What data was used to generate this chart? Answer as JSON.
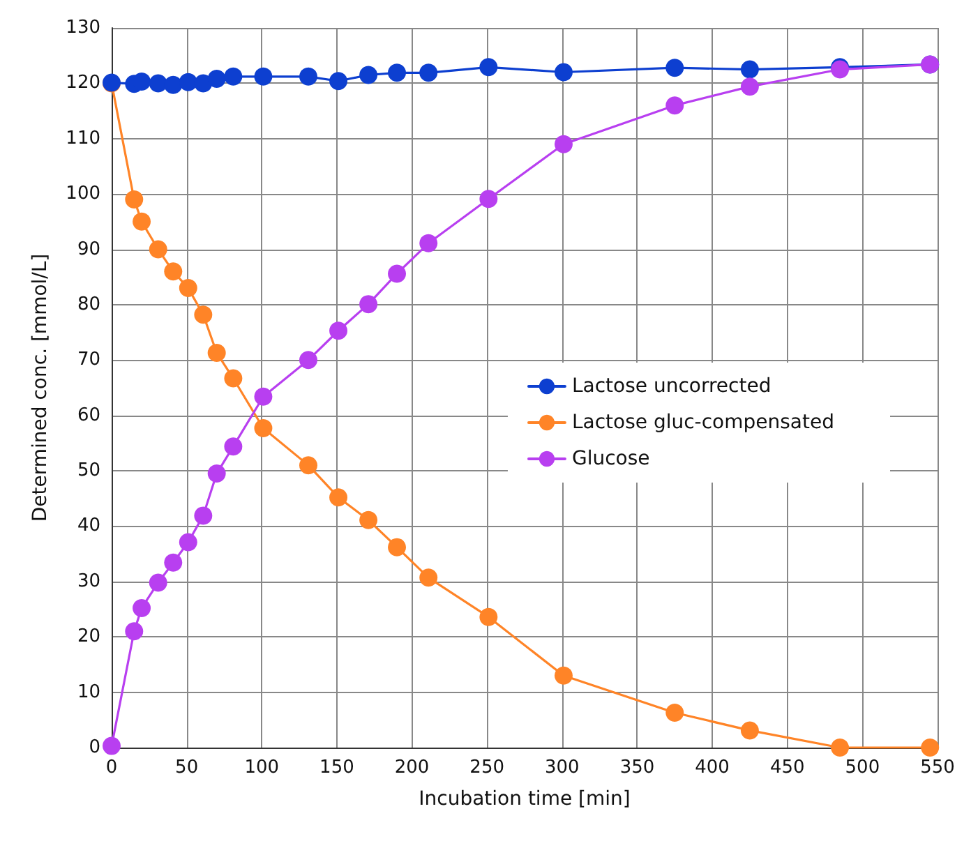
{
  "chart_data": {
    "type": "line",
    "xlabel": "Incubation time [min]",
    "ylabel": "Determined conc. [mmol/L]",
    "x": [
      0,
      15,
      20,
      31,
      41,
      51,
      61,
      70,
      81,
      101,
      131,
      151,
      171,
      190,
      211,
      251,
      301,
      375,
      425,
      485,
      545
    ],
    "series": [
      {
        "name": "Lactose uncorrected",
        "color": "#0d3fd0",
        "values": [
          120.1,
          119.9,
          120.3,
          120,
          119.7,
          120.2,
          120,
          120.8,
          121.2,
          121.2,
          121.2,
          120.4,
          121.5,
          121.9,
          121.9,
          122.9,
          122,
          122.8,
          122.5,
          122.9,
          123.4
        ]
      },
      {
        "name": "Lactose gluc-compensated",
        "color": "#ff8427",
        "values": [
          120,
          99,
          95,
          90,
          86,
          83,
          78.2,
          71.3,
          66.7,
          57.7,
          51,
          45.2,
          41.1,
          36.2,
          30.7,
          23.6,
          13,
          6.3,
          3.1,
          0,
          0
        ]
      },
      {
        "name": "Glucose",
        "color": "#b83ff0",
        "values": [
          0.3,
          21,
          25.2,
          29.8,
          33.4,
          37.1,
          41.9,
          49.5,
          54.4,
          63.4,
          70,
          75.3,
          80.1,
          85.6,
          91.1,
          99.1,
          109,
          116,
          119.4,
          122.5,
          123.4
        ]
      }
    ],
    "xlim": [
      0,
      550
    ],
    "xticks": [
      0,
      50,
      100,
      150,
      200,
      250,
      300,
      350,
      400,
      450,
      500,
      550
    ],
    "ylim": [
      0,
      130
    ],
    "yticks": [
      0,
      10,
      20,
      30,
      40,
      50,
      60,
      70,
      80,
      90,
      100,
      110,
      120,
      130
    ],
    "grid": true,
    "legend": "right",
    "marker": "circle",
    "line_style": "solid"
  }
}
